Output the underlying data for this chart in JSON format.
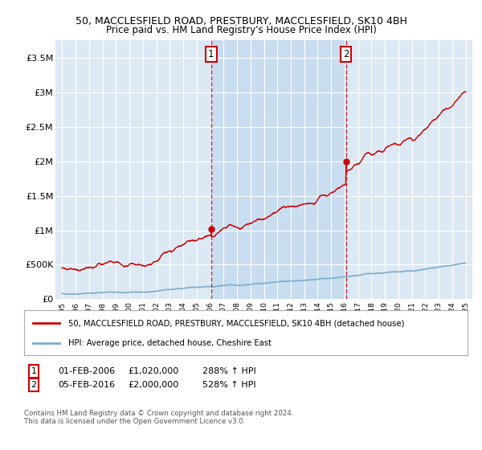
{
  "title1": "50, MACCLESFIELD ROAD, PRESTBURY, MACCLESFIELD, SK10 4BH",
  "title2": "Price paid vs. HM Land Registry's House Price Index (HPI)",
  "legend_label1": "50, MACCLESFIELD ROAD, PRESTBURY, MACCLESFIELD, SK10 4BH (detached house)",
  "legend_label2": "HPI: Average price, detached house, Cheshire East",
  "annotation1_text": "01-FEB-2006     £1,020,000     288% ↑ HPI",
  "annotation2_text": "05-FEB-2016     £2,000,000     528% ↑ HPI",
  "copyright_text": "Contains HM Land Registry data © Crown copyright and database right 2024.\nThis data is licensed under the Open Government Licence v3.0.",
  "red_color": "#cc0000",
  "blue_color": "#7aaccc",
  "bg_color": "#dce9f5",
  "shade_color": "#c0d8ef",
  "grid_color": "#ffffff",
  "annotation_border": "#cc0000",
  "ylim": [
    0,
    3750000
  ],
  "yticks": [
    0,
    500000,
    1000000,
    1500000,
    2000000,
    2500000,
    3000000,
    3500000
  ],
  "date1_yr": 2006.08,
  "date2_yr": 2016.1,
  "price1": 1020000,
  "price2": 2000000
}
